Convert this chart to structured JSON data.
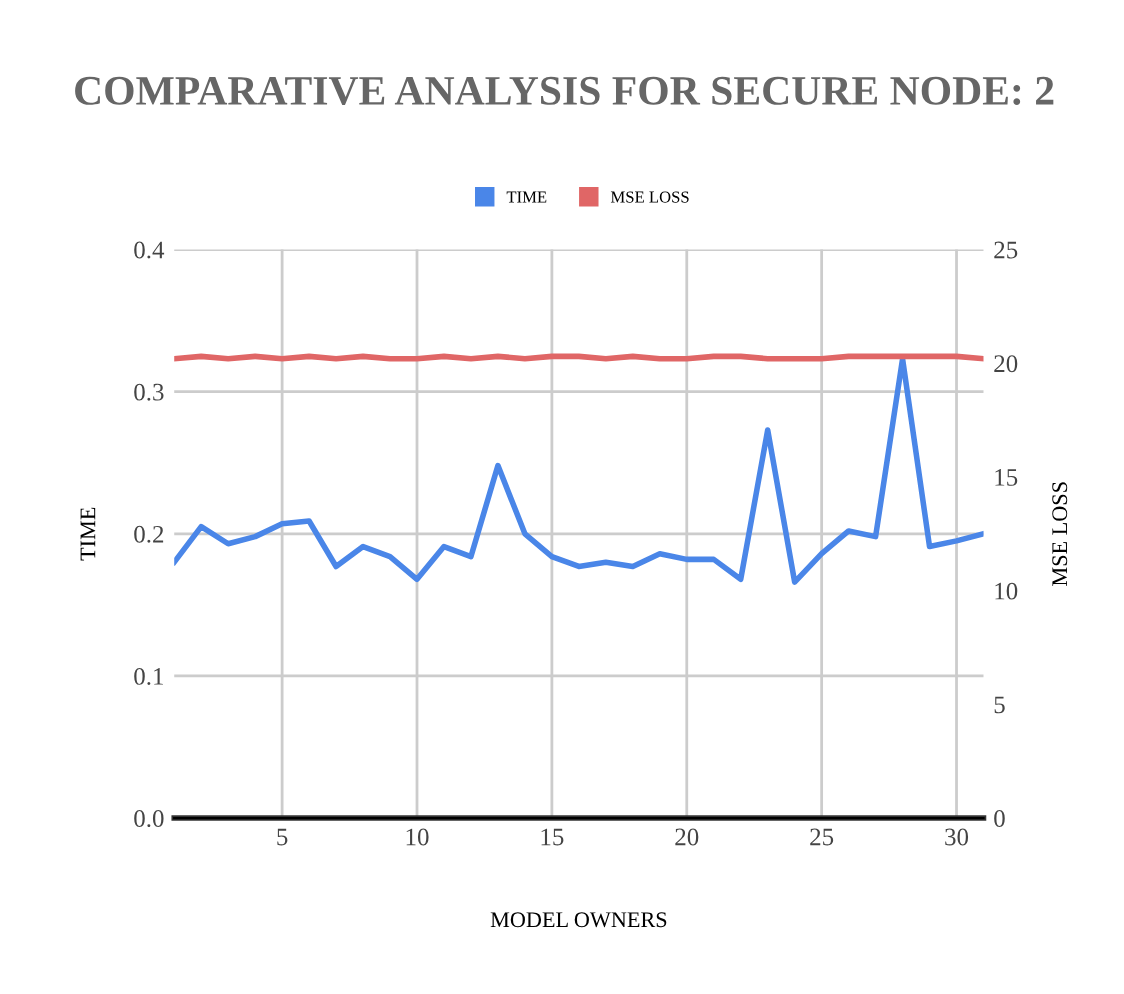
{
  "chart_data": {
    "type": "line",
    "title": "COMPARATIVE ANALYSIS FOR SECURE NODE: 2",
    "xlabel": "MODEL OWNERS",
    "ylabel": "TIME",
    "y2label": "MSE LOSS",
    "x": [
      1,
      2,
      3,
      4,
      5,
      6,
      7,
      8,
      9,
      10,
      11,
      12,
      13,
      14,
      15,
      16,
      17,
      18,
      19,
      20,
      21,
      22,
      23,
      24,
      25,
      26,
      27,
      28,
      29,
      30,
      31
    ],
    "series": [
      {
        "name": "TIME",
        "color": "#4a86e8",
        "values": [
          0.18,
          0.205,
          0.193,
          0.198,
          0.207,
          0.209,
          0.177,
          0.191,
          0.184,
          0.168,
          0.191,
          0.184,
          0.248,
          0.2,
          0.184,
          0.177,
          0.18,
          0.177,
          0.186,
          0.182,
          0.182,
          0.168,
          0.273,
          0.166,
          0.186,
          0.202,
          0.198,
          0.323,
          0.191,
          0.195,
          0.2
        ]
      },
      {
        "name": "MSE LOSS",
        "color": "#e06666",
        "axis": "y2",
        "values": [
          20.2,
          20.3,
          20.2,
          20.3,
          20.2,
          20.3,
          20.2,
          20.3,
          20.2,
          20.2,
          20.3,
          20.2,
          20.3,
          20.2,
          20.3,
          20.3,
          20.2,
          20.3,
          20.2,
          20.2,
          20.3,
          20.3,
          20.2,
          20.2,
          20.2,
          20.3,
          20.3,
          20.3,
          20.3,
          20.3,
          20.2
        ]
      }
    ],
    "xlim": [
      1,
      31
    ],
    "xticks": [
      5,
      10,
      15,
      20,
      25,
      30
    ],
    "ylim": [
      0,
      0.4
    ],
    "yticks": [
      {
        "value": 0,
        "label": "0.0"
      },
      0.1,
      0.2,
      0.3,
      0.4
    ],
    "y2lim": [
      0,
      25
    ],
    "y2ticks": [
      0,
      5,
      10,
      15,
      20,
      25
    ],
    "grid": true,
    "legend": "top",
    "marker": "none",
    "line_style": "solid"
  }
}
